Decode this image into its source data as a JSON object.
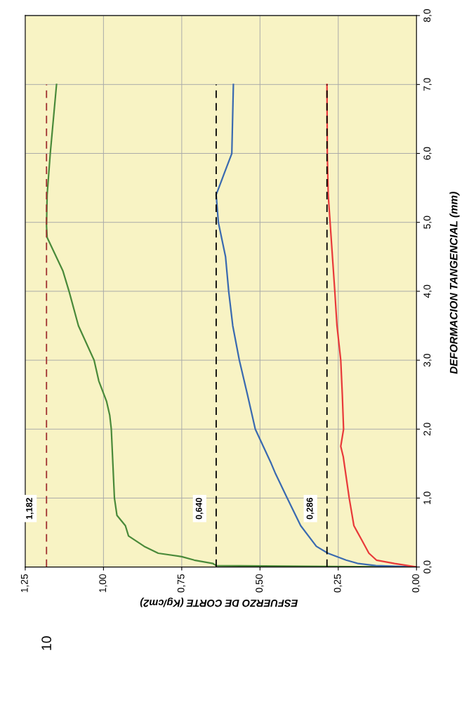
{
  "chart_data": {
    "type": "line",
    "xlabel": "ESFUERZO DE CORTE (Kg/cm2)",
    "ylabel": "DEFORMACION TANGENCIAL (mm)",
    "xlim": [
      1.25,
      0
    ],
    "xticks": [
      {
        "value": 1.25,
        "label": "1,25"
      },
      {
        "value": 1.0,
        "label": "1,00"
      },
      {
        "value": 0.75,
        "label": "0,75"
      },
      {
        "value": 0.5,
        "label": "0,50"
      },
      {
        "value": 0.25,
        "label": "0,25"
      },
      {
        "value": 0,
        "label": "0,00"
      }
    ],
    "ylim": [
      0,
      8
    ],
    "yticks": [
      {
        "value": 0,
        "label": "0,0"
      },
      {
        "value": 1,
        "label": "1,0"
      },
      {
        "value": 2,
        "label": "2,0"
      },
      {
        "value": 3,
        "label": "3,0"
      },
      {
        "value": 4,
        "label": "4,0"
      },
      {
        "value": 5,
        "label": "5,0"
      },
      {
        "value": 6,
        "label": "6,0"
      },
      {
        "value": 7,
        "label": "7,0"
      },
      {
        "value": 8,
        "label": "8,0"
      }
    ],
    "series": [
      {
        "color": "#4a8a3a",
        "x": [
          0,
          0.64,
          0.65,
          0.71,
          0.75,
          0.825,
          0.87,
          0.92,
          0.93,
          0.957,
          0.965,
          0.97,
          0.975,
          0.98,
          0.99,
          1.015,
          1.03,
          1.08,
          1.11,
          1.13,
          1.18,
          1.182,
          1.18,
          1.17,
          1.15
        ],
        "values": [
          0,
          0.02,
          0.05,
          0.1,
          0.15,
          0.2,
          0.3,
          0.45,
          0.6,
          0.75,
          1.0,
          1.5,
          2.0,
          2.2,
          2.4,
          2.7,
          3.0,
          3.5,
          4.0,
          4.3,
          4.78,
          4.95,
          5.4,
          6.0,
          7.0
        ]
      },
      {
        "color": "#3a6ab0",
        "x": [
          0,
          0.13,
          0.186,
          0.225,
          0.283,
          0.32,
          0.37,
          0.413,
          0.45,
          0.464,
          0.515,
          0.54,
          0.566,
          0.587,
          0.6,
          0.61,
          0.633,
          0.64,
          0.615,
          0.59,
          0.585
        ],
        "values": [
          0,
          0.02,
          0.05,
          0.1,
          0.2,
          0.3,
          0.6,
          1.0,
          1.35,
          1.5,
          2.0,
          2.5,
          3.0,
          3.5,
          4.0,
          4.5,
          5.0,
          5.4,
          5.7,
          6.0,
          7.0
        ]
      },
      {
        "color": "#e83a3a",
        "x": [
          0,
          0.07,
          0.128,
          0.152,
          0.176,
          0.2,
          0.215,
          0.234,
          0.242,
          0.233,
          0.237,
          0.242,
          0.254,
          0.261,
          0.276,
          0.282,
          0.285,
          0.286
        ],
        "values": [
          0,
          0.05,
          0.1,
          0.2,
          0.4,
          0.6,
          1.0,
          1.6,
          1.75,
          2.0,
          2.5,
          3.0,
          3.5,
          4.0,
          5.0,
          5.4,
          6.0,
          7.0
        ]
      }
    ],
    "ref_lines": [
      {
        "axis": "x",
        "value": 1.182,
        "label": "1,182",
        "color": "#a03030",
        "line_style": "dashed"
      },
      {
        "axis": "x",
        "value": 0.64,
        "label": "0,640",
        "color": "#000000",
        "line_style": "dashed"
      },
      {
        "axis": "x",
        "value": 0.286,
        "label": "0,286",
        "color": "#000000",
        "line_style": "dashed"
      }
    ],
    "annotations": [
      "10"
    ],
    "grid": true,
    "marker": "none",
    "line_style": "solid"
  }
}
